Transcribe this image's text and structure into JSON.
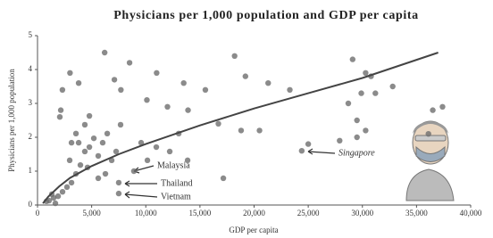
{
  "chart_data": {
    "type": "scatter",
    "title": "Physicians per 1,000 population and GDP per capita",
    "x_label": "GDP per capita",
    "y_label": "Physicians per 1,000 population",
    "xlim": [
      0,
      40000
    ],
    "ylim": [
      0,
      5
    ],
    "xticks": [
      0,
      {
        "value": 5000,
        "label": "5,000"
      },
      {
        "value": 10000,
        "label": "10,000"
      },
      {
        "value": 15000,
        "label": "15,000"
      },
      {
        "value": 20000,
        "label": "20,000"
      },
      {
        "value": 25000,
        "label": "25,000"
      },
      {
        "value": 30000,
        "label": "30,000"
      },
      {
        "value": 35000,
        "label": "35,000"
      },
      {
        "value": 40000,
        "label": "40,000"
      }
    ],
    "yticks": [
      0,
      1,
      2,
      3,
      4,
      5
    ],
    "series": [
      {
        "type": "scatter",
        "color": "#6e6e6e",
        "x": [
          2300,
          2150,
          2060,
          3000,
          3800,
          6200,
          8500,
          7100,
          7700,
          11000,
          10100,
          13500,
          15500,
          12000,
          13900,
          18200,
          19200,
          21300,
          23300,
          18800,
          20500,
          16700,
          29100,
          30800,
          29900,
          28700,
          31200,
          32800,
          29500,
          30300,
          29500,
          27900,
          25000,
          24400,
          36500,
          37400,
          36100,
          30300,
          1070,
          1490,
          1900,
          1320,
          2310,
          2720,
          1650,
          830,
          3140,
          3550,
          3960,
          4370,
          4790,
          5200,
          5610,
          3800,
          6020,
          6440,
          6850,
          7260,
          7670,
          4370,
          4790,
          3550,
          2970,
          3140,
          5610,
          6270,
          8900,
          4620,
          9570,
          10150,
          10970,
          13040,
          17160,
          12210,
          13860,
          7500,
          7500
        ],
        "values": [
          3.4,
          2.8,
          2.6,
          3.9,
          3.6,
          4.5,
          4.2,
          3.7,
          3.4,
          3.9,
          3.1,
          3.6,
          3.4,
          2.9,
          2.8,
          4.4,
          3.8,
          3.6,
          3.4,
          2.2,
          2.2,
          2.4,
          4.3,
          3.8,
          3.3,
          3.0,
          3.3,
          3.5,
          2.5,
          2.2,
          2.0,
          1.9,
          1.8,
          1.6,
          2.8,
          2.9,
          2.1,
          3.9,
          0.13,
          0.21,
          0.26,
          0.32,
          0.39,
          0.53,
          0.05,
          0.11,
          0.66,
          0.92,
          1.18,
          1.58,
          1.71,
          1.97,
          1.45,
          1.84,
          1.84,
          2.11,
          1.32,
          1.58,
          2.37,
          2.37,
          2.63,
          2.11,
          1.32,
          1.84,
          0.79,
          0.92,
          1.0,
          1.11,
          1.84,
          1.32,
          1.71,
          2.11,
          0.79,
          1.58,
          1.32,
          0.66,
          0.34
        ]
      },
      {
        "type": "line",
        "color": "#444444",
        "x": [
          500,
          1000,
          2000,
          3000,
          5000,
          7500,
          10000,
          15000,
          20000,
          25000,
          30000,
          37000
        ],
        "values": [
          0.05,
          0.25,
          0.55,
          0.8,
          1.15,
          1.5,
          1.8,
          2.35,
          2.85,
          3.3,
          3.75,
          4.5
        ]
      }
    ],
    "annotations": [
      "Malaysia",
      "Thailand",
      "Vietnam",
      "Singapore"
    ]
  }
}
